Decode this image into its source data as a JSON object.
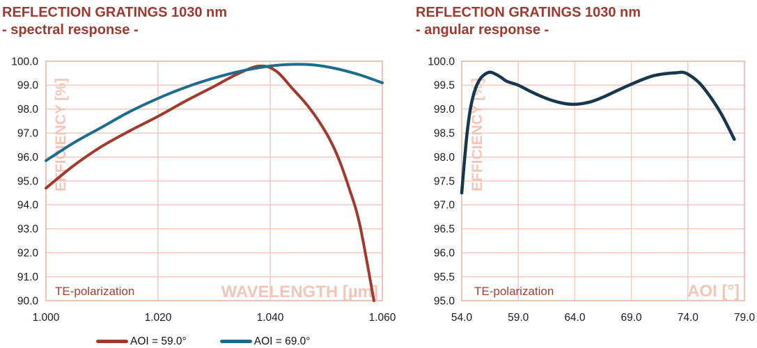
{
  "colors": {
    "background": "#FFFFFF",
    "title": "#9C3A2F",
    "grid": "#F2C8BF",
    "plot_border": "#F0C2B8",
    "watermark": "#F3C5B9",
    "annotation": "#A03E33",
    "tick_label": "#1A1A1A",
    "legend_label": "#111111"
  },
  "chart_data": [
    {
      "type": "line",
      "title": "REFLECTION GRATINGS 1030 nm",
      "subtitle": "- spectral response -",
      "xlabel": "WAVELENGTH [µm]",
      "ylabel": "EFFICIENCY [%]",
      "annotation": "TE-polarization",
      "xlim": [
        1.0,
        1.06
      ],
      "ylim": [
        90.0,
        100.0
      ],
      "x_ticks": [
        1.0,
        1.02,
        1.04,
        1.06
      ],
      "x_tick_labels": [
        "1.000",
        "1.020",
        "1.040",
        "1.060"
      ],
      "y_tick_step": 1.0,
      "y_tick_labels": [
        "100.0",
        "99.0",
        "98.0",
        "97.0",
        "96.0",
        "95.0",
        "94.0",
        "93.0",
        "92.0",
        "91.0",
        "90.0"
      ],
      "grid": true,
      "legend_position": "bottom",
      "series": [
        {
          "name": "AOI = 59.0°",
          "color": "#A2392D",
          "x": [
            1.0,
            1.005,
            1.01,
            1.015,
            1.02,
            1.025,
            1.03,
            1.034,
            1.038,
            1.041,
            1.044,
            1.047,
            1.05,
            1.052,
            1.054,
            1.056,
            1.0585
          ],
          "y": [
            94.7,
            95.65,
            96.45,
            97.1,
            97.7,
            98.35,
            98.95,
            99.45,
            99.8,
            99.6,
            98.85,
            98.05,
            97.0,
            96.05,
            94.75,
            93.15,
            90.0
          ]
        },
        {
          "name": "AOI = 69.0°",
          "color": "#1D6C8B",
          "x": [
            1.0,
            1.005,
            1.01,
            1.015,
            1.02,
            1.025,
            1.03,
            1.035,
            1.04,
            1.044,
            1.048,
            1.052,
            1.056,
            1.06
          ],
          "y": [
            95.85,
            96.6,
            97.25,
            97.9,
            98.45,
            98.92,
            99.3,
            99.6,
            99.8,
            99.87,
            99.84,
            99.68,
            99.43,
            99.1
          ]
        }
      ]
    },
    {
      "type": "line",
      "title": "REFLECTION GRATINGS 1030 nm",
      "subtitle": "- angular response -",
      "xlabel": "AOI [°]",
      "ylabel": "EFFICIENCY [%]",
      "annotation": "TE-polarization",
      "xlim": [
        54.0,
        79.0
      ],
      "ylim": [
        95.0,
        100.0
      ],
      "x_ticks": [
        54.0,
        59.0,
        64.0,
        69.0,
        74.0,
        79.0
      ],
      "x_tick_labels": [
        "54.0",
        "59.0",
        "64.0",
        "69.0",
        "74.0",
        "79.0"
      ],
      "y_tick_step": 0.5,
      "y_tick_labels": [
        "100.0",
        "99.5",
        "99.0",
        "98.5",
        "98.0",
        "97.5",
        "97.0",
        "96.5",
        "96.0",
        "95.5",
        "95.0"
      ],
      "grid": true,
      "legend_position": "none",
      "series": [
        {
          "name": "",
          "color": "#17384C",
          "x": [
            54.0,
            54.25,
            54.5,
            54.8,
            55.2,
            55.6,
            56.0,
            56.5,
            57.0,
            57.5,
            58.0,
            59.0,
            60.0,
            61.0,
            62.0,
            63.0,
            63.8,
            64.5,
            65.5,
            66.5,
            67.5,
            68.5,
            69.0,
            70.0,
            71.0,
            72.0,
            73.0,
            73.5,
            74.0,
            75.0,
            76.0,
            77.0,
            78.1
          ],
          "y": [
            97.25,
            97.95,
            98.55,
            99.05,
            99.42,
            99.62,
            99.72,
            99.77,
            99.73,
            99.66,
            99.58,
            99.5,
            99.38,
            99.27,
            99.18,
            99.12,
            99.1,
            99.11,
            99.16,
            99.25,
            99.36,
            99.47,
            99.52,
            99.62,
            99.7,
            99.74,
            99.76,
            99.77,
            99.73,
            99.55,
            99.25,
            98.88,
            98.37
          ]
        }
      ]
    }
  ]
}
